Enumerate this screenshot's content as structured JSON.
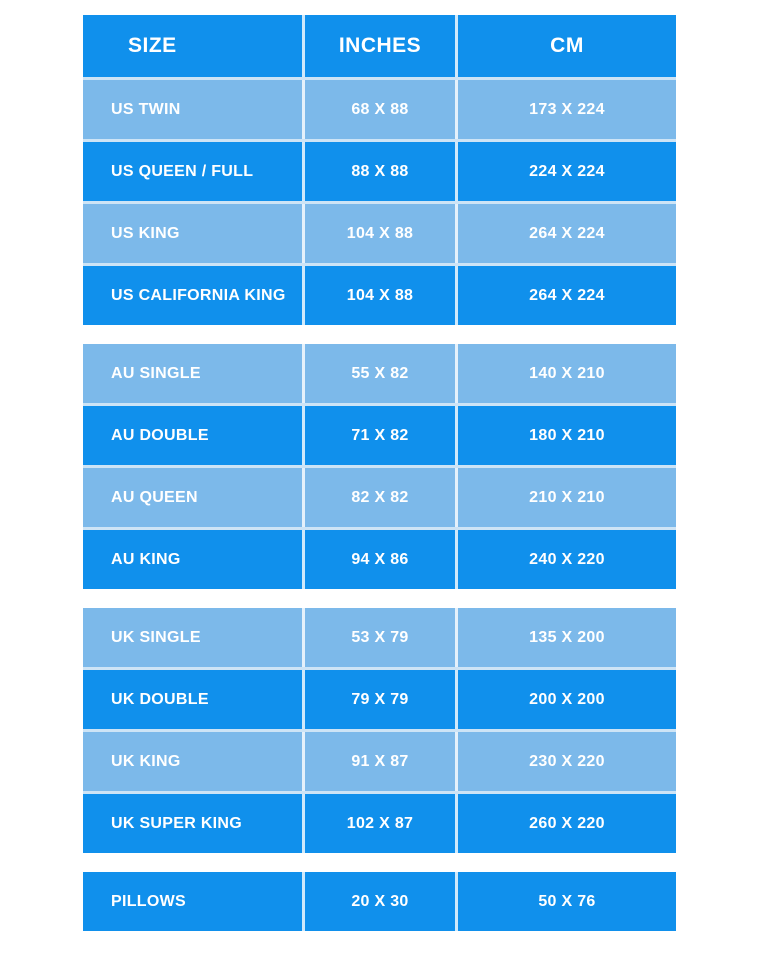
{
  "table": {
    "columns": [
      "SIZE",
      "INCHES",
      "CM"
    ],
    "sections": [
      {
        "group": "US",
        "rows": [
          {
            "size": "US TWIN",
            "inches": "68 X 88",
            "cm": "173 X 224",
            "shade": "light"
          },
          {
            "size": "US QUEEN / FULL",
            "inches": "88 X 88",
            "cm": "224 X 224",
            "shade": "dark"
          },
          {
            "size": "US KING",
            "inches": "104 X 88",
            "cm": "264 X 224",
            "shade": "light"
          },
          {
            "size": "US CALIFORNIA KING",
            "inches": "104 X 88",
            "cm": "264 X 224",
            "shade": "dark"
          }
        ]
      },
      {
        "group": "AU",
        "rows": [
          {
            "size": "AU SINGLE",
            "inches": "55 X 82",
            "cm": "140 X 210",
            "shade": "light"
          },
          {
            "size": "AU DOUBLE",
            "inches": "71 X 82",
            "cm": "180 X 210",
            "shade": "dark"
          },
          {
            "size": "AU QUEEN",
            "inches": "82 X 82",
            "cm": "210 X 210",
            "shade": "light"
          },
          {
            "size": "AU KING",
            "inches": "94 X 86",
            "cm": "240 X 220",
            "shade": "dark"
          }
        ]
      },
      {
        "group": "UK",
        "rows": [
          {
            "size": "UK SINGLE",
            "inches": "53 X 79",
            "cm": "135 X 200",
            "shade": "light"
          },
          {
            "size": "UK DOUBLE",
            "inches": "79 X 79",
            "cm": "200 X 200",
            "shade": "dark"
          },
          {
            "size": "UK KING",
            "inches": "91 X 87",
            "cm": "230 X 220",
            "shade": "light"
          },
          {
            "size": "UK SUPER KING",
            "inches": "102 X 87",
            "cm": "260 X 220",
            "shade": "dark"
          }
        ]
      },
      {
        "group": "PILLOWS",
        "rows": [
          {
            "size": "PILLOWS",
            "inches": "20 X 30",
            "cm": "50 X 76",
            "shade": "dark"
          }
        ]
      }
    ],
    "colors": {
      "header_bg": "#1090ec",
      "dark_row_bg": "#1090ec",
      "light_row_bg": "#7cb9ea",
      "separator": "#cde4f6",
      "text": "#ffffff",
      "page_bg": "#ffffff"
    }
  }
}
